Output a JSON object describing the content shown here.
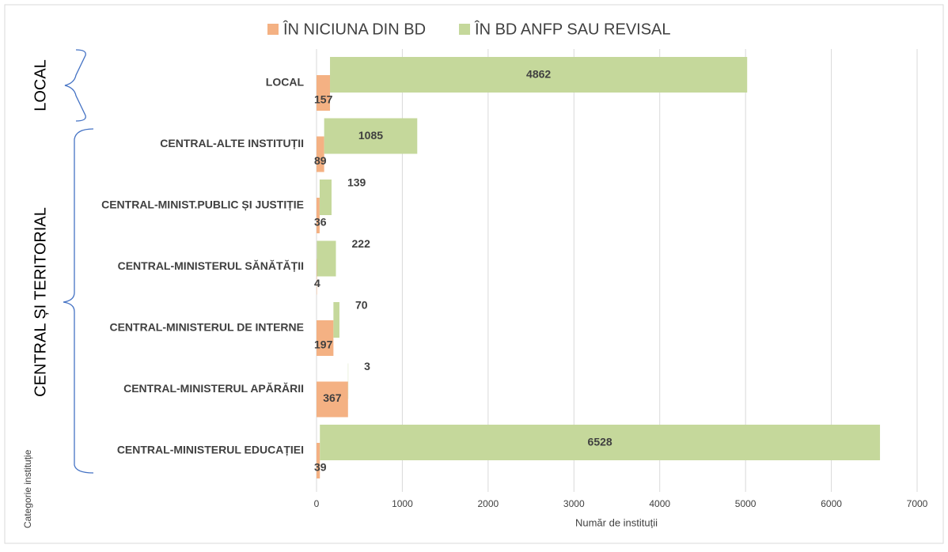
{
  "chart_data": {
    "type": "hbar_stacked",
    "categories": [
      "LOCAL",
      "CENTRAL-ALTE INSTITUȚII",
      "CENTRAL-MINIST.PUBLIC ȘI JUSTIȚIE",
      "CENTRAL-MINISTERUL SĂNĂTĂȚII",
      "CENTRAL-MINISTERUL DE INTERNE",
      "CENTRAL-MINISTERUL APĂRĂRII",
      "CENTRAL-MINISTERUL EDUCAȚIEI"
    ],
    "series": [
      {
        "name": "ÎN NICIUNA DIN BD",
        "color": "#f4b183",
        "values": [
          157,
          89,
          36,
          4,
          197,
          367,
          39
        ]
      },
      {
        "name": "ÎN BD ANFP SAU REVISAL",
        "color": "#c5d89b",
        "values": [
          4862,
          1085,
          139,
          222,
          70,
          3,
          6528
        ]
      }
    ],
    "xlim": [
      0,
      7000
    ],
    "xticks": [
      0,
      1000,
      2000,
      3000,
      4000,
      5000,
      6000,
      7000
    ],
    "x_label": "Număr de instituții",
    "y_label": "Categorie instituție",
    "groups": [
      "LOCAL",
      "CENTRAL ȘI TERITORIAL"
    ],
    "grid": true,
    "legend": "top"
  }
}
